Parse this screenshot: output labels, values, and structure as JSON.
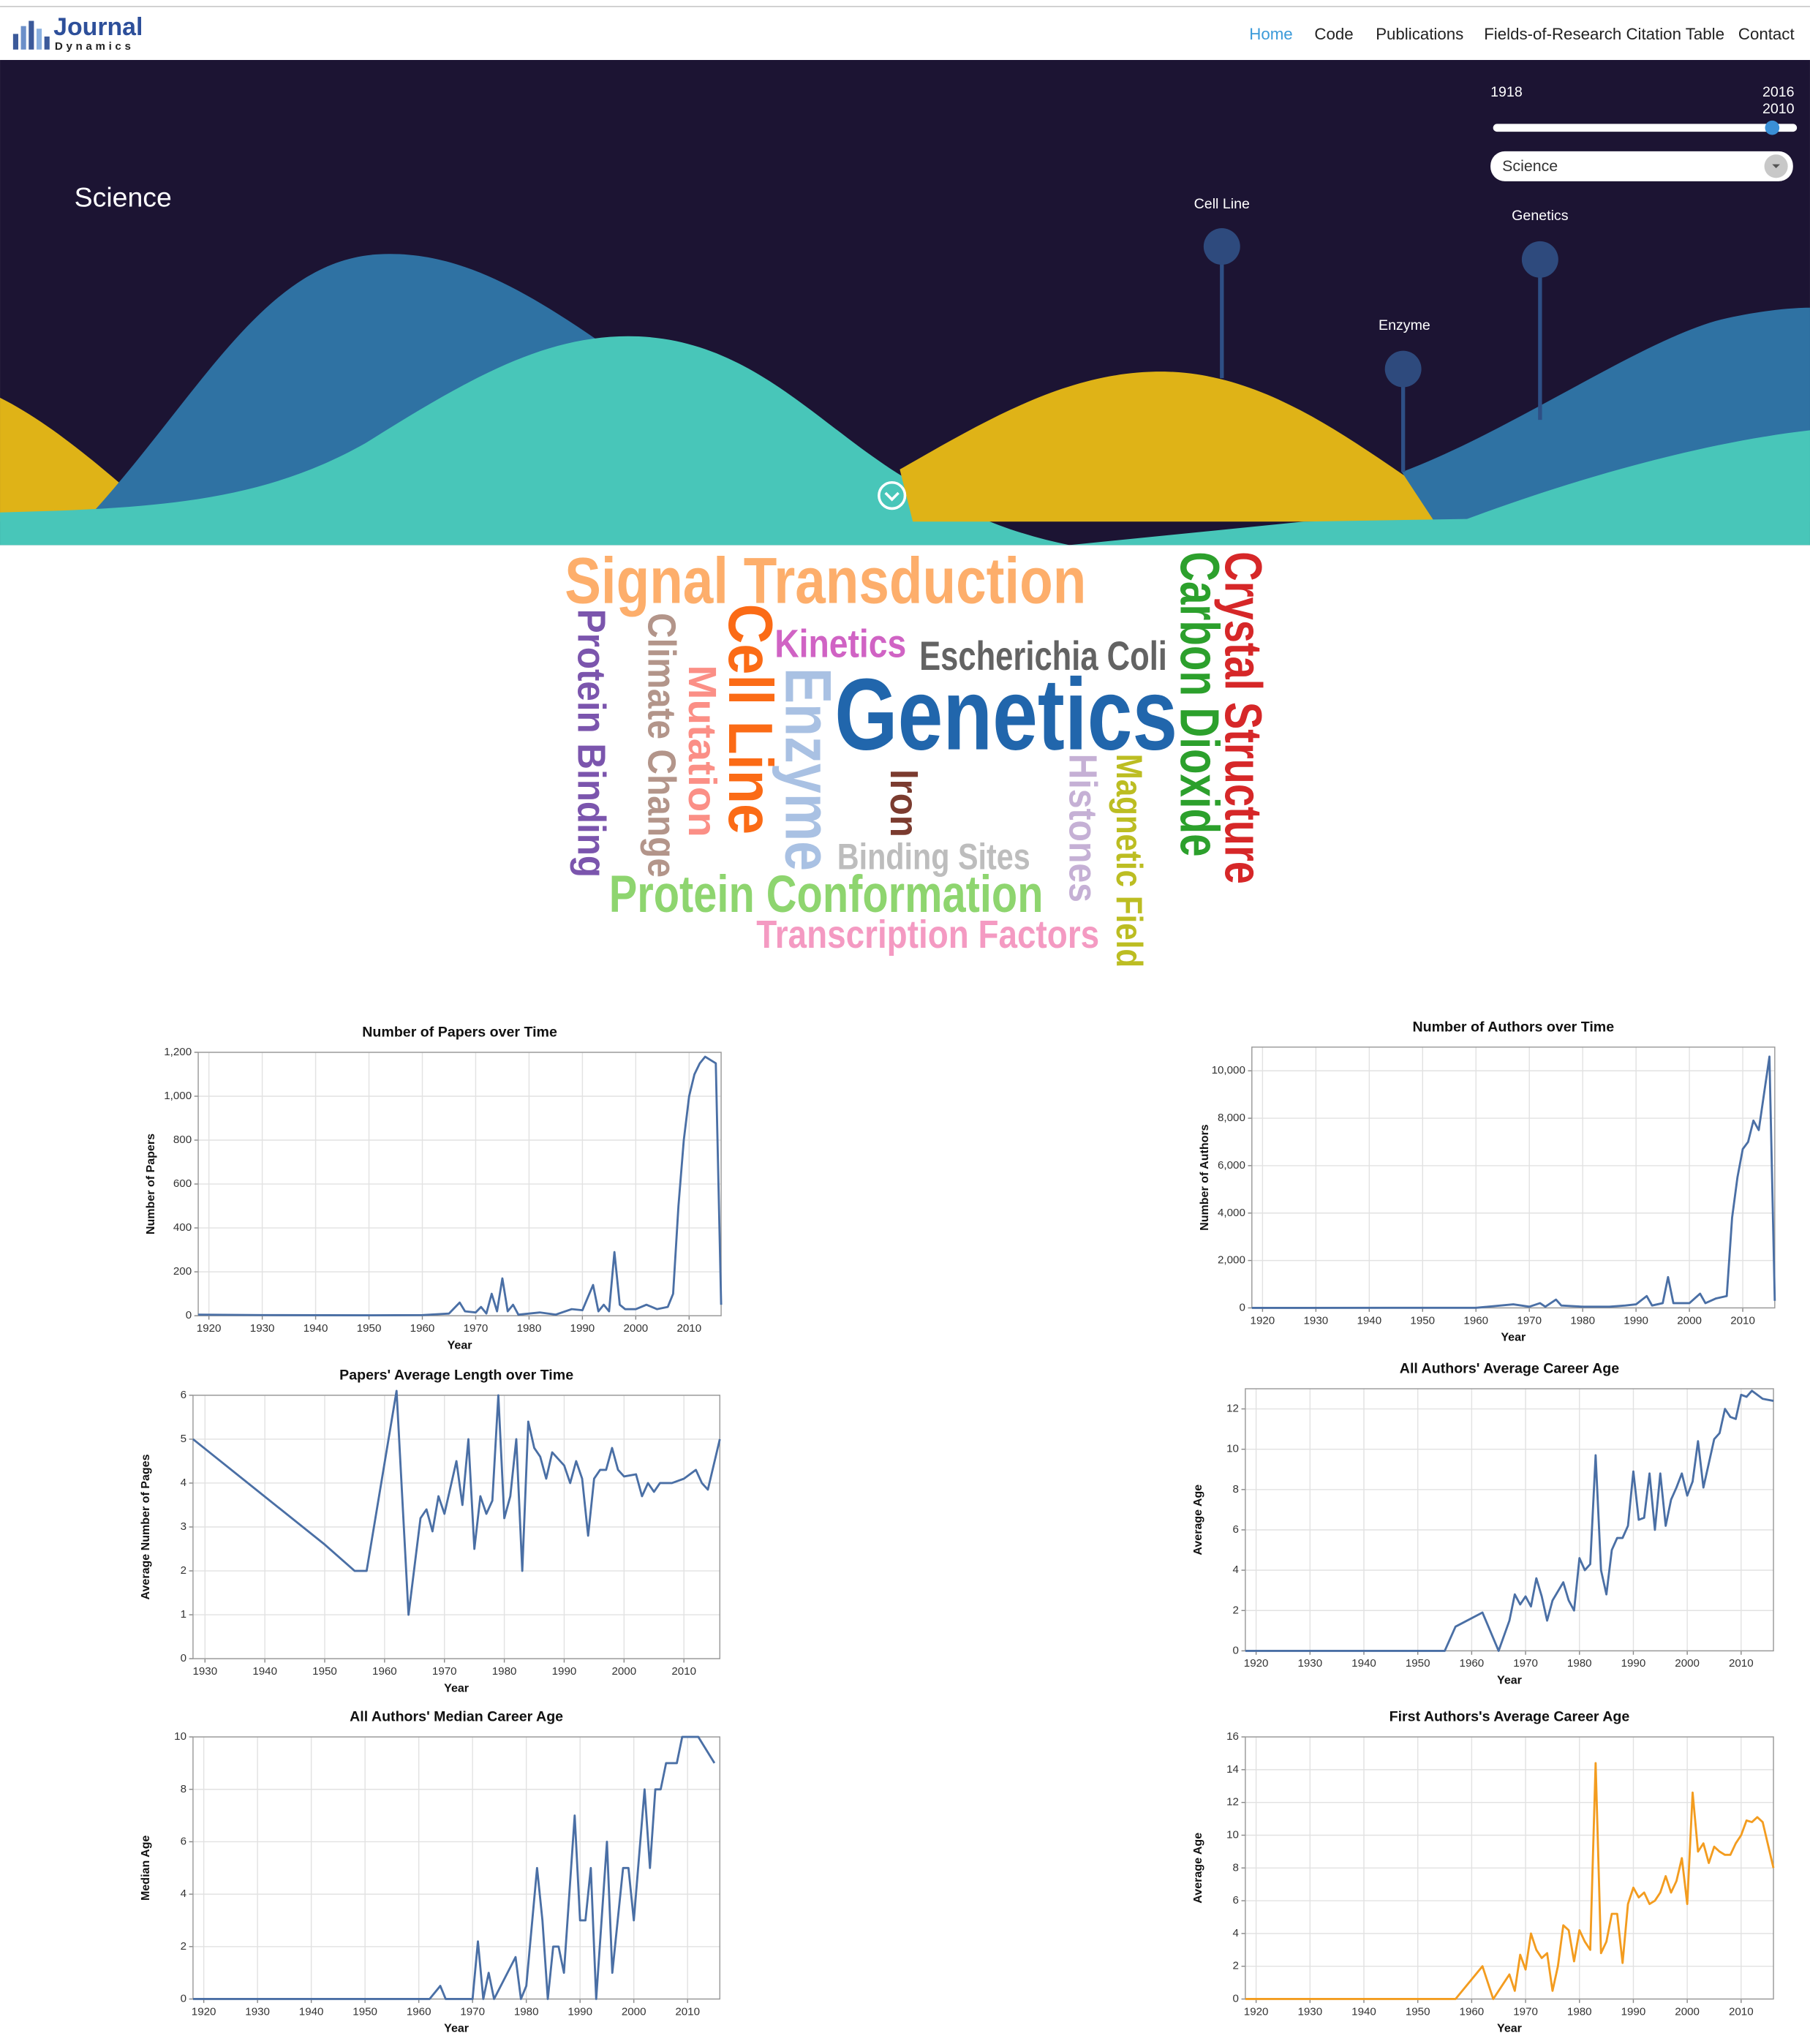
{
  "header": {
    "logo": [
      "Journal",
      "Dynamics"
    ],
    "nav": [
      "Home",
      "Code",
      "Publications",
      "Fields-of-Research Citation Table",
      "Contact"
    ]
  },
  "hero": {
    "title": "Science",
    "topics": [
      "Cell Line",
      "Enzyme",
      "Genetics"
    ],
    "slider": {
      "min": 1918,
      "max": 2016,
      "value": 2010
    },
    "select": "Science"
  },
  "words": [
    {
      "text": "Signal Transduction",
      "color": "#fdae6b"
    },
    {
      "text": "Genetics",
      "color": "#2166ac"
    },
    {
      "text": "Escherichia Coli",
      "color": "#636363"
    },
    {
      "text": "Kinetics",
      "color": "#d063c4"
    },
    {
      "text": "Binding Sites",
      "color": "#bdbdbd"
    },
    {
      "text": "Protein Conformation",
      "color": "#8ed56f"
    },
    {
      "text": "Transcription Factors",
      "color": "#f49ac2"
    },
    {
      "text": "Protein Binding",
      "color": "#7b55ad"
    },
    {
      "text": "Climate Change",
      "color": "#b3958a"
    },
    {
      "text": "Mutation",
      "color": "#fb8f86"
    },
    {
      "text": "Cell Line",
      "color": "#fb6b16"
    },
    {
      "text": "Enzyme",
      "color": "#a9c1e3"
    },
    {
      "text": "Iron",
      "color": "#7b3b2f"
    },
    {
      "text": "Histones",
      "color": "#c5b0d5"
    },
    {
      "text": "Magnetic Field",
      "color": "#bcbd22"
    },
    {
      "text": "Carbon Dioxide",
      "color": "#2ca02c"
    },
    {
      "text": "Crystal Structure",
      "color": "#d62728"
    }
  ],
  "chart_data": [
    {
      "type": "line",
      "title": "Number of Papers over Time",
      "x_label": "Year",
      "y_label": "Number of Papers",
      "color": "#4a6fa5",
      "x": [
        1918,
        1930,
        1950,
        1960,
        1965,
        1967,
        1968,
        1970,
        1971,
        1972,
        1973,
        1974,
        1975,
        1976,
        1977,
        1978,
        1980,
        1982,
        1985,
        1988,
        1990,
        1992,
        1993,
        1994,
        1995,
        1996,
        1997,
        1998,
        2000,
        2002,
        2004,
        2006,
        2007,
        2008,
        2009,
        2010,
        2011,
        2012,
        2013,
        2015,
        2016
      ],
      "values": [
        5,
        3,
        2,
        3,
        10,
        60,
        20,
        15,
        40,
        10,
        100,
        20,
        170,
        20,
        50,
        5,
        10,
        15,
        5,
        30,
        25,
        140,
        20,
        50,
        20,
        290,
        50,
        30,
        30,
        50,
        30,
        40,
        100,
        500,
        800,
        1000,
        1100,
        1150,
        1180,
        1150,
        50
      ],
      "xlim": [
        1918,
        2016
      ],
      "xticks": [
        1920,
        1930,
        1940,
        1950,
        1960,
        1970,
        1980,
        1990,
        2000,
        2010
      ],
      "ylim": [
        0,
        1200
      ],
      "yticks": [
        0,
        200,
        400,
        600,
        800,
        {
          "value": 1000,
          "label": "1,000"
        },
        {
          "value": 1200,
          "label": "1,200"
        }
      ]
    },
    {
      "type": "line",
      "title": "Number of Authors over Time",
      "x_label": "Year",
      "y_label": "Number of Authors",
      "color": "#4a6fa5",
      "x": [
        1918,
        1960,
        1967,
        1970,
        1972,
        1973,
        1975,
        1976,
        1980,
        1985,
        1988,
        1990,
        1992,
        1993,
        1995,
        1996,
        1997,
        2000,
        2002,
        2003,
        2005,
        2007,
        2008,
        2009,
        2010,
        2011,
        2012,
        2013,
        2015,
        2016
      ],
      "values": [
        0,
        5,
        150,
        50,
        200,
        50,
        350,
        100,
        50,
        50,
        100,
        150,
        500,
        100,
        200,
        1300,
        200,
        200,
        600,
        200,
        400,
        500,
        3800,
        5500,
        6700,
        7000,
        7900,
        7500,
        10600,
        300
      ],
      "xlim": [
        1918,
        2016
      ],
      "xticks": [
        1920,
        1930,
        1940,
        1950,
        1960,
        1970,
        1980,
        1990,
        2000,
        2010
      ],
      "ylim": [
        0,
        11000
      ],
      "yticks": [
        0,
        {
          "value": 2000,
          "label": "2,000"
        },
        {
          "value": 4000,
          "label": "4,000"
        },
        {
          "value": 6000,
          "label": "6,000"
        },
        {
          "value": 8000,
          "label": "8,000"
        },
        {
          "value": 10000,
          "label": "10,000"
        }
      ]
    },
    {
      "type": "line",
      "title": "Papers' Average Length over Time",
      "x_label": "Year",
      "y_label": "Average Number of Pages",
      "color": "#4a6fa5",
      "x": [
        1928,
        1950,
        1955,
        1957,
        1962,
        1964,
        1966,
        1967,
        1968,
        1969,
        1970,
        1972,
        1973,
        1974,
        1975,
        1976,
        1977,
        1978,
        1979,
        1980,
        1981,
        1982,
        1983,
        1984,
        1985,
        1986,
        1987,
        1988,
        1990,
        1991,
        1992,
        1993,
        1994,
        1995,
        1996,
        1997,
        1998,
        1999,
        2000,
        2002,
        2003,
        2004,
        2005,
        2006,
        2008,
        2010,
        2012,
        2013,
        2014,
        2016
      ],
      "values": [
        5,
        2.6,
        2,
        2,
        6.1,
        1,
        3.2,
        3.4,
        2.9,
        3.7,
        3.3,
        4.5,
        3.5,
        5,
        2.5,
        3.7,
        3.3,
        3.6,
        6,
        3.2,
        3.7,
        5,
        2,
        5.4,
        4.8,
        4.6,
        4.1,
        4.7,
        4.4,
        4,
        4.5,
        4.1,
        2.8,
        4.1,
        4.3,
        4.3,
        4.8,
        4.3,
        4.15,
        4.2,
        3.7,
        4,
        3.8,
        4,
        4,
        4.1,
        4.3,
        4,
        3.85,
        5
      ],
      "xlim": [
        1928,
        2016
      ],
      "xticks": [
        1930,
        1940,
        1950,
        1960,
        1970,
        1980,
        1990,
        2000,
        2010
      ],
      "ylim": [
        0,
        6
      ],
      "yticks": [
        0,
        1,
        2,
        3,
        4,
        5,
        6
      ]
    },
    {
      "type": "line",
      "title": "All Authors' Average Career Age",
      "x_label": "Year",
      "y_label": "Average Age",
      "color": "#4a6fa5",
      "x": [
        1918,
        1955,
        1957,
        1962,
        1965,
        1967,
        1968,
        1969,
        1970,
        1971,
        1972,
        1973,
        1974,
        1975,
        1977,
        1978,
        1979,
        1980,
        1981,
        1982,
        1983,
        1984,
        1985,
        1986,
        1987,
        1988,
        1989,
        1990,
        1991,
        1992,
        1993,
        1994,
        1995,
        1996,
        1997,
        1998,
        1999,
        2000,
        2001,
        2002,
        2003,
        2004,
        2005,
        2006,
        2007,
        2008,
        2009,
        2010,
        2011,
        2012,
        2014,
        2016
      ],
      "values": [
        0,
        0,
        1.2,
        1.9,
        0,
        1.5,
        2.8,
        2.3,
        2.7,
        2.2,
        3.6,
        2.7,
        1.5,
        2.5,
        3.4,
        2.5,
        2,
        4.6,
        4,
        4.3,
        9.7,
        4,
        2.8,
        5,
        5.6,
        5.6,
        6.2,
        8.9,
        6.5,
        6.6,
        8.8,
        6,
        8.8,
        6.2,
        7.5,
        8.1,
        8.8,
        7.7,
        8.4,
        10.4,
        8.1,
        9.3,
        10.5,
        10.8,
        12,
        11.6,
        11.5,
        12.7,
        12.6,
        12.9,
        12.5,
        12.4
      ],
      "xlim": [
        1918,
        2016
      ],
      "xticks": [
        1920,
        1930,
        1940,
        1950,
        1960,
        1970,
        1980,
        1990,
        2000,
        2010
      ],
      "ylim": [
        0,
        13
      ],
      "yticks": [
        0,
        2,
        4,
        6,
        8,
        10,
        12
      ]
    },
    {
      "type": "line",
      "title": "All Authors' Median Career Age",
      "x_label": "Year",
      "y_label": "Median Age",
      "color": "#4a6fa5",
      "x": [
        1918,
        1962,
        1964,
        1965,
        1970,
        1971,
        1972,
        1973,
        1974,
        1978,
        1979,
        1980,
        1982,
        1983,
        1984,
        1985,
        1986,
        1987,
        1989,
        1990,
        1991,
        1992,
        1993,
        1995,
        1996,
        1997,
        1998,
        1999,
        2000,
        2002,
        2003,
        2004,
        2005,
        2006,
        2008,
        2009,
        2012,
        2015
      ],
      "values": [
        0,
        0,
        0.5,
        0,
        0,
        2.2,
        0,
        1,
        0,
        1.6,
        0,
        0.5,
        5,
        3,
        0,
        2,
        2,
        1,
        7,
        3,
        3,
        5,
        0,
        6,
        1,
        3,
        5,
        5,
        3,
        8,
        5,
        8,
        8,
        9,
        9,
        10,
        10,
        9
      ],
      "xlim": [
        1918,
        2016
      ],
      "xticks": [
        1920,
        1930,
        1940,
        1950,
        1960,
        1970,
        1980,
        1990,
        2000,
        2010
      ],
      "ylim": [
        0,
        10
      ],
      "yticks": [
        0,
        2,
        4,
        6,
        8,
        10
      ]
    },
    {
      "type": "line",
      "title": "First Authors's Average Career Age",
      "x_label": "Year",
      "y_label": "Average Age",
      "color": "#f39c1f",
      "x": [
        1918,
        1957,
        1962,
        1964,
        1966,
        1967,
        1968,
        1969,
        1970,
        1971,
        1972,
        1973,
        1974,
        1975,
        1976,
        1977,
        1978,
        1979,
        1980,
        1981,
        1982,
        1983,
        1984,
        1985,
        1986,
        1987,
        1988,
        1989,
        1990,
        1991,
        1992,
        1993,
        1994,
        1995,
        1996,
        1997,
        1998,
        1999,
        2000,
        2001,
        2002,
        2003,
        2004,
        2005,
        2006,
        2007,
        2008,
        2009,
        2010,
        2011,
        2012,
        2013,
        2014,
        2016
      ],
      "values": [
        0,
        0,
        2,
        0,
        1,
        1.5,
        0.5,
        2.7,
        1.8,
        4,
        3,
        2.5,
        2.8,
        0.5,
        2,
        4.5,
        4.2,
        2.3,
        4.2,
        3.5,
        3,
        14.4,
        2.8,
        3.5,
        5.2,
        5.2,
        2.2,
        5.8,
        6.8,
        6.2,
        6.5,
        5.8,
        6,
        6.5,
        7.5,
        6.5,
        7.2,
        8.6,
        5.8,
        12.6,
        9,
        9.5,
        8.3,
        9.3,
        9,
        8.8,
        8.8,
        9.5,
        10,
        10.9,
        10.8,
        11.1,
        10.8,
        8
      ],
      "xlim": [
        1918,
        2016
      ],
      "xticks": [
        1920,
        1930,
        1940,
        1950,
        1960,
        1970,
        1980,
        1990,
        2000,
        2010
      ],
      "ylim": [
        0,
        16
      ],
      "yticks": [
        0,
        2,
        4,
        6,
        8,
        10,
        12,
        14,
        16
      ]
    }
  ]
}
